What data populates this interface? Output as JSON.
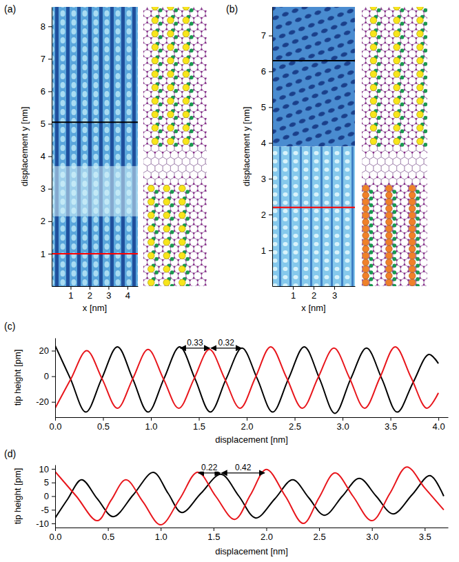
{
  "chart_data": [
    {
      "type": "image",
      "panel_label": "(a)",
      "xlabel": "x [nm]",
      "ylabel": "displacement y [nm]",
      "xlim": [
        0,
        4.55
      ],
      "ylim": [
        0,
        8.6
      ],
      "xticks": [
        1,
        2,
        3,
        4
      ],
      "yticks": [
        1,
        2,
        3,
        4,
        5,
        6,
        7,
        8
      ],
      "hlines": [
        {
          "y": 5.05,
          "color": "#000000"
        },
        {
          "y": 1.0,
          "color": "#ff0000"
        }
      ]
    },
    {
      "type": "image",
      "panel_label": "(b)",
      "xlabel": "x [nm]",
      "ylabel": "displacement y [nm]",
      "xlim": [
        0,
        4.0
      ],
      "ylim": [
        0,
        7.8
      ],
      "xticks": [
        1,
        2,
        3
      ],
      "yticks": [
        1,
        2,
        3,
        4,
        5,
        6,
        7
      ],
      "hlines": [
        {
          "y": 6.3,
          "color": "#000000"
        },
        {
          "y": 2.2,
          "color": "#ff0000"
        }
      ]
    },
    {
      "type": "line",
      "panel_label": "(c)",
      "xlabel": "displacement [nm]",
      "ylabel": "tip height [pm]",
      "xlim": [
        0,
        4.1
      ],
      "ylim": [
        -32,
        30
      ],
      "xticks": [
        {
          "value": 0,
          "label": "0.0"
        },
        {
          "value": 0.5,
          "label": "0.5"
        },
        {
          "value": 1,
          "label": "1.0"
        },
        {
          "value": 1.5,
          "label": "1.5"
        },
        {
          "value": 2,
          "label": "2.0"
        },
        {
          "value": 2.5,
          "label": "2.5"
        },
        {
          "value": 3,
          "label": "3.0"
        },
        {
          "value": 3.5,
          "label": "3.5"
        },
        {
          "value": 4,
          "label": "4.0"
        }
      ],
      "yticks": [
        -20,
        0,
        20
      ],
      "series": [
        {
          "color": "#000000",
          "x": [
            0,
            0.16,
            0.32,
            0.485,
            0.65,
            0.81,
            0.97,
            1.135,
            1.3,
            1.46,
            1.62,
            1.785,
            1.95,
            2.11,
            2.27,
            2.435,
            2.6,
            2.76,
            2.92,
            3.085,
            3.25,
            3.41,
            3.57,
            3.735,
            3.9,
            4.0
          ],
          "values": [
            24,
            -2,
            -28,
            -2,
            23,
            -2,
            -28,
            -2,
            23,
            -2,
            -28,
            -2,
            22,
            -2,
            -28,
            -2,
            23,
            -2,
            -29,
            -2,
            22,
            -2,
            -28,
            -5,
            17,
            10
          ]
        },
        {
          "color": "#e8151b",
          "x": [
            0,
            0.165,
            0.33,
            0.49,
            0.65,
            0.81,
            0.97,
            1.13,
            1.29,
            1.45,
            1.61,
            1.77,
            1.93,
            2.09,
            2.25,
            2.415,
            2.58,
            2.745,
            2.91,
            3.07,
            3.23,
            3.39,
            3.55,
            3.715,
            3.88,
            4.0
          ],
          "values": [
            -25,
            -2,
            20,
            -2,
            -25,
            -2,
            21,
            -2,
            -25,
            -2,
            21,
            -2,
            -25,
            -1,
            23,
            -1,
            -25,
            -1,
            22,
            -1,
            -25,
            -1,
            23,
            -1,
            -25,
            -13
          ]
        }
      ],
      "annotations": [
        {
          "text": "0.33",
          "x1": 1.3,
          "x2": 1.62,
          "y": 22
        },
        {
          "text": "0.32",
          "x1": 1.62,
          "x2": 1.95,
          "y": 22
        }
      ]
    },
    {
      "type": "line",
      "panel_label": "(d)",
      "xlabel": "displacement [nm]",
      "ylabel": "tip height [pm]",
      "xlim": [
        0,
        3.72
      ],
      "ylim": [
        -11.5,
        11.5
      ],
      "xticks": [
        {
          "value": 0,
          "label": "0.0"
        },
        {
          "value": 0.5,
          "label": "0.5"
        },
        {
          "value": 1,
          "label": "1.0"
        },
        {
          "value": 1.5,
          "label": "1.5"
        },
        {
          "value": 2,
          "label": "2.0"
        },
        {
          "value": 2.5,
          "label": "2.5"
        },
        {
          "value": 3,
          "label": "3.0"
        },
        {
          "value": 3.5,
          "label": "3.5"
        }
      ],
      "yticks": [
        -10,
        -5,
        0,
        5,
        10
      ],
      "series": [
        {
          "color": "#000000",
          "x": [
            0,
            0.12,
            0.25,
            0.4,
            0.55,
            0.74,
            0.93,
            1.07,
            1.2,
            1.38,
            1.57,
            1.74,
            1.9,
            2.08,
            2.25,
            2.4,
            2.55,
            2.72,
            2.88,
            3.04,
            3.2,
            3.38,
            3.55,
            3.68
          ],
          "values": [
            -8,
            -1,
            6,
            -1,
            -7.5,
            0.5,
            8.7,
            1,
            -6,
            1,
            8,
            0,
            -8,
            -1,
            6,
            -0.5,
            -7,
            0,
            6.5,
            0,
            -6.5,
            0.5,
            7.5,
            0
          ]
        },
        {
          "color": "#e8151b",
          "x": [
            0,
            0.2,
            0.4,
            0.53,
            0.67,
            0.83,
            1.0,
            1.18,
            1.35,
            1.52,
            1.7,
            1.85,
            2.0,
            2.18,
            2.35,
            2.5,
            2.65,
            2.82,
            3.0,
            3.17,
            3.33,
            3.5,
            3.68
          ],
          "values": [
            9,
            0,
            -9,
            -1.5,
            6,
            -2,
            -10.5,
            -1,
            8.8,
            0,
            -8.5,
            0.5,
            9.8,
            0,
            -10,
            -0.5,
            8.5,
            0,
            -9,
            1,
            10.7,
            3,
            -5
          ]
        }
      ],
      "annotations": [
        {
          "text": "0.22",
          "x1": 1.35,
          "x2": 1.57,
          "y": 8.5
        },
        {
          "text": "0.42",
          "x1": 1.57,
          "x2": 1.99,
          "y": 8.5
        }
      ]
    }
  ]
}
